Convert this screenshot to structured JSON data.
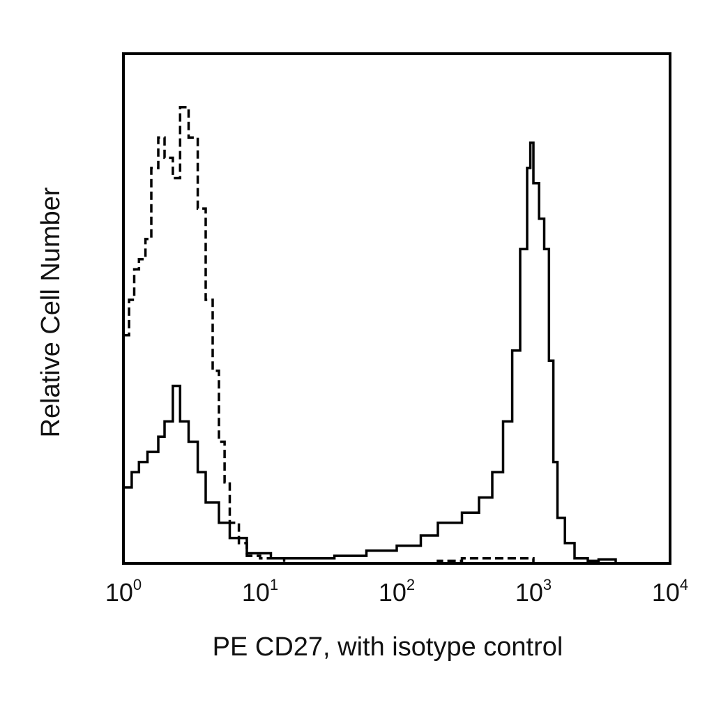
{
  "chart_data": {
    "type": "line",
    "xscale": "log",
    "xlim": [
      1,
      10000
    ],
    "ylim": [
      0,
      1
    ],
    "xlabel": "PE CD27, with isotype control",
    "ylabel": "Relative Cell Number",
    "grid": false,
    "legend": "none",
    "x_ticks": [
      {
        "base": "10",
        "exp": "0",
        "value": 1
      },
      {
        "base": "10",
        "exp": "1",
        "value": 10
      },
      {
        "base": "10",
        "exp": "2",
        "value": 100
      },
      {
        "base": "10",
        "exp": "3",
        "value": 1000
      },
      {
        "base": "10",
        "exp": "4",
        "value": 10000
      }
    ],
    "series": [
      {
        "line_style": "dashed",
        "points": [
          [
            1.0,
            0.45
          ],
          [
            1.1,
            0.52
          ],
          [
            1.2,
            0.58
          ],
          [
            1.3,
            0.6
          ],
          [
            1.45,
            0.64
          ],
          [
            1.6,
            0.78
          ],
          [
            1.8,
            0.84
          ],
          [
            2.0,
            0.8
          ],
          [
            2.3,
            0.76
          ],
          [
            2.6,
            0.9
          ],
          [
            3.0,
            0.84
          ],
          [
            3.5,
            0.7
          ],
          [
            4.0,
            0.52
          ],
          [
            4.5,
            0.38
          ],
          [
            5.0,
            0.24
          ],
          [
            5.5,
            0.16
          ],
          [
            6.0,
            0.08
          ],
          [
            7.0,
            0.04
          ],
          [
            8.0,
            0.015
          ],
          [
            10.0,
            0.01
          ],
          [
            15.0,
            0.0
          ],
          [
            30.0,
            0.0
          ],
          [
            100.0,
            0.0
          ],
          [
            200.0,
            0.005
          ],
          [
            300.0,
            0.01
          ],
          [
            1000.0,
            0.0
          ],
          [
            10000.0,
            0.0
          ]
        ]
      },
      {
        "line_style": "solid",
        "points": [
          [
            1.0,
            0.15
          ],
          [
            1.15,
            0.18
          ],
          [
            1.3,
            0.2
          ],
          [
            1.5,
            0.22
          ],
          [
            1.8,
            0.25
          ],
          [
            2.0,
            0.28
          ],
          [
            2.3,
            0.35
          ],
          [
            2.6,
            0.28
          ],
          [
            3.0,
            0.24
          ],
          [
            3.5,
            0.18
          ],
          [
            4.0,
            0.12
          ],
          [
            5.0,
            0.08
          ],
          [
            6.0,
            0.05
          ],
          [
            8.0,
            0.02
          ],
          [
            12.0,
            0.01
          ],
          [
            20.0,
            0.01
          ],
          [
            35.0,
            0.015
          ],
          [
            60.0,
            0.025
          ],
          [
            100.0,
            0.035
          ],
          [
            150.0,
            0.055
          ],
          [
            200.0,
            0.08
          ],
          [
            300.0,
            0.1
          ],
          [
            400.0,
            0.13
          ],
          [
            500.0,
            0.18
          ],
          [
            600.0,
            0.28
          ],
          [
            700.0,
            0.42
          ],
          [
            800.0,
            0.62
          ],
          [
            900.0,
            0.78
          ],
          [
            950.0,
            0.83
          ],
          [
            1000.0,
            0.75
          ],
          [
            1100.0,
            0.68
          ],
          [
            1200.0,
            0.62
          ],
          [
            1300.0,
            0.4
          ],
          [
            1400.0,
            0.2
          ],
          [
            1500.0,
            0.09
          ],
          [
            1700.0,
            0.04
          ],
          [
            2000.0,
            0.01
          ],
          [
            2500.0,
            0.005
          ],
          [
            3000.0,
            0.008
          ],
          [
            4000.0,
            0.0
          ],
          [
            10000.0,
            0.0
          ]
        ]
      }
    ]
  }
}
